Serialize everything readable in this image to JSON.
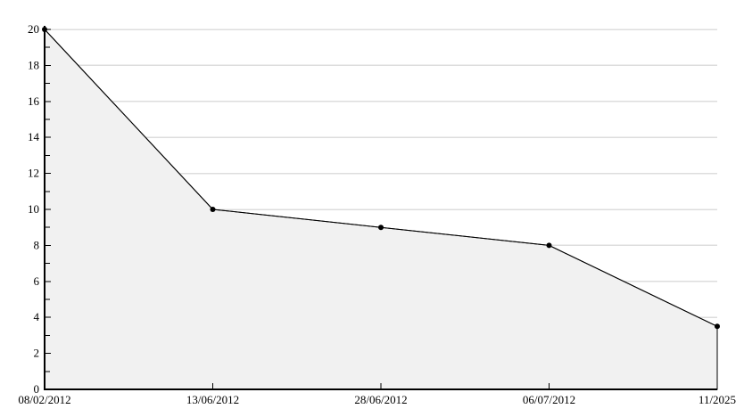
{
  "chart_data": {
    "type": "area",
    "title": "",
    "subtitle": "",
    "xlabel": "",
    "ylabel": "",
    "categories": [
      "08/02/2012",
      "13/06/2012",
      "28/06/2012",
      "06/07/2012",
      "11/2025"
    ],
    "values": [
      20,
      10,
      9,
      8,
      3.5
    ],
    "ylim": [
      0,
      20
    ],
    "y_major_step": 2,
    "y_minor_step": 1,
    "y_tick_labels": [
      "0",
      "2",
      "4",
      "6",
      "8",
      "10",
      "12",
      "14",
      "16",
      "18",
      "20"
    ],
    "grid": "horizontal-major",
    "legend": "none",
    "marker": "filled-circle",
    "colors": {
      "background": "#ffffff",
      "area_fill": "#f1f1f1",
      "line": "#000000",
      "marker": "#000000",
      "grid": "#dddddd",
      "axis": "#000000",
      "text": "#000000"
    }
  }
}
